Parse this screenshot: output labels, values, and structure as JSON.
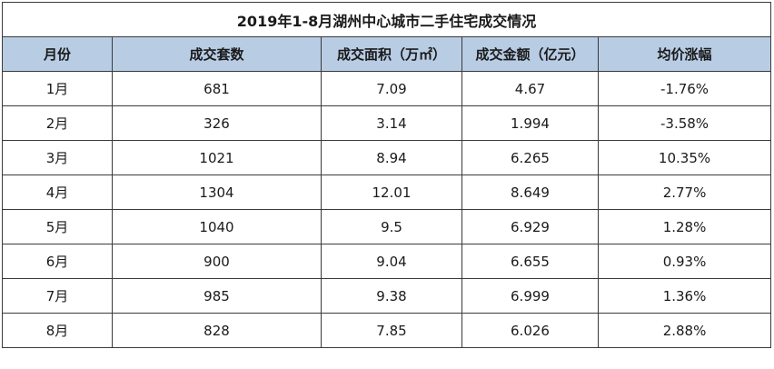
{
  "table": {
    "title": "2019年1-8月湖州中心城市二手住宅成交情况",
    "headers": [
      "月份",
      "成交套数",
      "成交面积（万㎡）",
      "成交金额（亿元）",
      "均价涨幅"
    ],
    "rows": [
      [
        "1月",
        "681",
        "7.09",
        "4.67",
        "-1.76%"
      ],
      [
        "2月",
        "326",
        "3.14",
        "1.994",
        "-3.58%"
      ],
      [
        "3月",
        "1021",
        "8.94",
        "6.265",
        "10.35%"
      ],
      [
        "4月",
        "1304",
        "12.01",
        "8.649",
        "2.77%"
      ],
      [
        "5月",
        "1040",
        "9.5",
        "6.929",
        "1.28%"
      ],
      [
        "6月",
        "900",
        "9.04",
        "6.655",
        "0.93%"
      ],
      [
        "7月",
        "985",
        "9.38",
        "6.999",
        "1.36%"
      ],
      [
        "8月",
        "828",
        "7.85",
        "6.026",
        "2.88%"
      ]
    ]
  },
  "colors": {
    "header_bg": "#b8cce4",
    "border": "#3a3a3a"
  }
}
